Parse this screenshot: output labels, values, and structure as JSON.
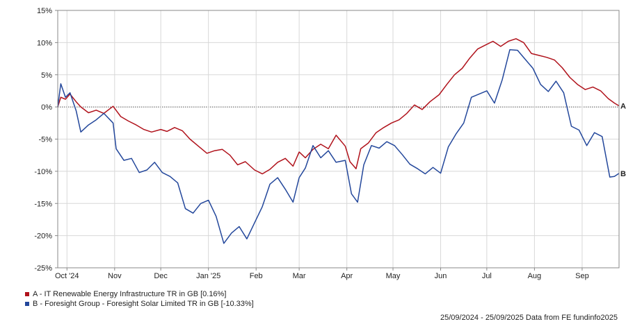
{
  "chart_data": {
    "type": "line",
    "y_unit": "%",
    "ylim": [
      -25,
      15
    ],
    "y_ticks": [
      "15%",
      "10%",
      "5%",
      "0%",
      "-5%",
      "-10%",
      "-15%",
      "-20%",
      "-25%"
    ],
    "y_tick_values": [
      15,
      10,
      5,
      0,
      -5,
      -10,
      -15,
      -20,
      -25
    ],
    "x_start": "2024-09-25",
    "x_end": "2025-09-25",
    "x_ticks": [
      {
        "label": "Oct '24",
        "date": "2024-10-01"
      },
      {
        "label": "Nov",
        "date": "2024-11-01"
      },
      {
        "label": "Dec",
        "date": "2024-12-01"
      },
      {
        "label": "Jan '25",
        "date": "2025-01-01"
      },
      {
        "label": "Feb",
        "date": "2025-02-01"
      },
      {
        "label": "Mar",
        "date": "2025-03-01"
      },
      {
        "label": "Apr",
        "date": "2025-04-01"
      },
      {
        "label": "May",
        "date": "2025-05-01"
      },
      {
        "label": "Jun",
        "date": "2025-06-01"
      },
      {
        "label": "Jul",
        "date": "2025-07-01"
      },
      {
        "label": "Aug",
        "date": "2025-08-01"
      },
      {
        "label": "Sep",
        "date": "2025-09-01"
      }
    ],
    "grid": true,
    "zero_line": "dotted",
    "series": [
      {
        "name": "A - IT Renewable Energy Infrastructure TR in GB [0.16%]",
        "end_label": "A",
        "color": "#b0121b",
        "points": [
          [
            "2024-09-25",
            0.0
          ],
          [
            "2024-09-27",
            1.5
          ],
          [
            "2024-09-30",
            1.2
          ],
          [
            "2024-10-03",
            2.0
          ],
          [
            "2024-10-07",
            0.8
          ],
          [
            "2024-10-10",
            0.0
          ],
          [
            "2024-10-15",
            -0.9
          ],
          [
            "2024-10-20",
            -0.5
          ],
          [
            "2024-10-25",
            -1.0
          ],
          [
            "2024-10-31",
            0.1
          ],
          [
            "2024-11-05",
            -1.5
          ],
          [
            "2024-11-10",
            -2.2
          ],
          [
            "2024-11-15",
            -2.8
          ],
          [
            "2024-11-20",
            -3.5
          ],
          [
            "2024-11-25",
            -3.9
          ],
          [
            "2024-12-01",
            -3.5
          ],
          [
            "2024-12-05",
            -3.8
          ],
          [
            "2024-12-10",
            -3.2
          ],
          [
            "2024-12-15",
            -3.7
          ],
          [
            "2024-12-20",
            -5.0
          ],
          [
            "2024-12-25",
            -6.0
          ],
          [
            "2024-12-31",
            -7.2
          ],
          [
            "2025-01-05",
            -6.8
          ],
          [
            "2025-01-10",
            -6.6
          ],
          [
            "2025-01-15",
            -7.5
          ],
          [
            "2025-01-20",
            -9.0
          ],
          [
            "2025-01-25",
            -8.5
          ],
          [
            "2025-01-31",
            -9.8
          ],
          [
            "2025-02-05",
            -10.4
          ],
          [
            "2025-02-10",
            -9.7
          ],
          [
            "2025-02-15",
            -8.6
          ],
          [
            "2025-02-20",
            -8.0
          ],
          [
            "2025-02-25",
            -9.2
          ],
          [
            "2025-03-01",
            -7.0
          ],
          [
            "2025-03-05",
            -7.9
          ],
          [
            "2025-03-10",
            -6.6
          ],
          [
            "2025-03-15",
            -5.8
          ],
          [
            "2025-03-20",
            -6.5
          ],
          [
            "2025-03-25",
            -4.4
          ],
          [
            "2025-03-31",
            -6.1
          ],
          [
            "2025-04-03",
            -8.5
          ],
          [
            "2025-04-07",
            -9.6
          ],
          [
            "2025-04-10",
            -6.5
          ],
          [
            "2025-04-15",
            -5.6
          ],
          [
            "2025-04-20",
            -4.0
          ],
          [
            "2025-04-25",
            -3.2
          ],
          [
            "2025-04-30",
            -2.5
          ],
          [
            "2025-05-05",
            -2.0
          ],
          [
            "2025-05-10",
            -1.0
          ],
          [
            "2025-05-15",
            0.3
          ],
          [
            "2025-05-20",
            -0.4
          ],
          [
            "2025-05-25",
            0.8
          ],
          [
            "2025-05-31",
            1.9
          ],
          [
            "2025-06-05",
            3.5
          ],
          [
            "2025-06-10",
            5.0
          ],
          [
            "2025-06-15",
            6.0
          ],
          [
            "2025-06-20",
            7.6
          ],
          [
            "2025-06-25",
            9.0
          ],
          [
            "2025-06-30",
            9.6
          ],
          [
            "2025-07-05",
            10.2
          ],
          [
            "2025-07-10",
            9.4
          ],
          [
            "2025-07-15",
            10.2
          ],
          [
            "2025-07-20",
            10.6
          ],
          [
            "2025-07-25",
            10.0
          ],
          [
            "2025-07-30",
            8.3
          ],
          [
            "2025-08-04",
            8.0
          ],
          [
            "2025-08-09",
            7.7
          ],
          [
            "2025-08-14",
            7.3
          ],
          [
            "2025-08-19",
            6.1
          ],
          [
            "2025-08-24",
            4.6
          ],
          [
            "2025-08-29",
            3.5
          ],
          [
            "2025-09-03",
            2.7
          ],
          [
            "2025-09-08",
            3.1
          ],
          [
            "2025-09-13",
            2.5
          ],
          [
            "2025-09-18",
            1.3
          ],
          [
            "2025-09-22",
            0.6
          ],
          [
            "2025-09-25",
            0.16
          ]
        ]
      },
      {
        "name": "B - Foresight Group - Foresight Solar Limited TR in GB [-10.33%]",
        "end_label": "B",
        "color": "#23479b",
        "points": [
          [
            "2024-09-25",
            0.0
          ],
          [
            "2024-09-27",
            3.6
          ],
          [
            "2024-09-30",
            1.5
          ],
          [
            "2024-10-03",
            2.2
          ],
          [
            "2024-10-07",
            -0.6
          ],
          [
            "2024-10-10",
            -3.9
          ],
          [
            "2024-10-15",
            -2.8
          ],
          [
            "2024-10-20",
            -2.0
          ],
          [
            "2024-10-25",
            -1.0
          ],
          [
            "2024-10-31",
            -2.5
          ],
          [
            "2024-11-02",
            -6.5
          ],
          [
            "2024-11-07",
            -8.3
          ],
          [
            "2024-11-12",
            -8.0
          ],
          [
            "2024-11-17",
            -10.2
          ],
          [
            "2024-11-22",
            -9.8
          ],
          [
            "2024-11-27",
            -8.6
          ],
          [
            "2024-12-02",
            -10.2
          ],
          [
            "2024-12-07",
            -10.8
          ],
          [
            "2024-12-12",
            -11.8
          ],
          [
            "2024-12-17",
            -15.8
          ],
          [
            "2024-12-22",
            -16.5
          ],
          [
            "2024-12-27",
            -15.0
          ],
          [
            "2025-01-01",
            -14.5
          ],
          [
            "2025-01-06",
            -17.0
          ],
          [
            "2025-01-11",
            -21.2
          ],
          [
            "2025-01-16",
            -19.6
          ],
          [
            "2025-01-21",
            -18.6
          ],
          [
            "2025-01-26",
            -20.5
          ],
          [
            "2025-01-31",
            -18.0
          ],
          [
            "2025-02-05",
            -15.5
          ],
          [
            "2025-02-10",
            -12.0
          ],
          [
            "2025-02-15",
            -11.0
          ],
          [
            "2025-02-20",
            -12.8
          ],
          [
            "2025-02-25",
            -14.8
          ],
          [
            "2025-03-01",
            -11.0
          ],
          [
            "2025-03-05",
            -9.5
          ],
          [
            "2025-03-10",
            -6.0
          ],
          [
            "2025-03-15",
            -7.9
          ],
          [
            "2025-03-20",
            -6.8
          ],
          [
            "2025-03-25",
            -8.6
          ],
          [
            "2025-03-31",
            -8.3
          ],
          [
            "2025-04-04",
            -13.5
          ],
          [
            "2025-04-08",
            -14.8
          ],
          [
            "2025-04-12",
            -9.0
          ],
          [
            "2025-04-17",
            -6.0
          ],
          [
            "2025-04-22",
            -6.4
          ],
          [
            "2025-04-27",
            -5.4
          ],
          [
            "2025-05-02",
            -6.0
          ],
          [
            "2025-05-07",
            -7.4
          ],
          [
            "2025-05-12",
            -8.9
          ],
          [
            "2025-05-17",
            -9.6
          ],
          [
            "2025-05-22",
            -10.4
          ],
          [
            "2025-05-27",
            -9.4
          ],
          [
            "2025-06-01",
            -10.3
          ],
          [
            "2025-06-06",
            -6.2
          ],
          [
            "2025-06-11",
            -4.2
          ],
          [
            "2025-06-16",
            -2.5
          ],
          [
            "2025-06-21",
            1.5
          ],
          [
            "2025-06-26",
            2.0
          ],
          [
            "2025-07-01",
            2.5
          ],
          [
            "2025-07-06",
            0.6
          ],
          [
            "2025-07-11",
            4.2
          ],
          [
            "2025-07-16",
            8.9
          ],
          [
            "2025-07-21",
            8.8
          ],
          [
            "2025-07-26",
            7.4
          ],
          [
            "2025-07-31",
            6.0
          ],
          [
            "2025-08-05",
            3.5
          ],
          [
            "2025-08-10",
            2.4
          ],
          [
            "2025-08-15",
            4.0
          ],
          [
            "2025-08-20",
            2.2
          ],
          [
            "2025-08-25",
            -3.0
          ],
          [
            "2025-08-30",
            -3.6
          ],
          [
            "2025-09-04",
            -6.0
          ],
          [
            "2025-09-09",
            -4.0
          ],
          [
            "2025-09-14",
            -4.6
          ],
          [
            "2025-09-19",
            -10.9
          ],
          [
            "2025-09-22",
            -10.8
          ],
          [
            "2025-09-25",
            -10.33
          ]
        ]
      }
    ],
    "legend_placement": "bottom-left"
  },
  "legend": {
    "a": "A - IT Renewable Energy Infrastructure TR in GB [0.16%]",
    "b": "B - Foresight Group - Foresight Solar Limited TR in GB [-10.33%]"
  },
  "footer": "25/09/2024 - 25/09/2025 Data from FE fundinfo2025",
  "colors": {
    "a": "#b0121b",
    "b": "#23479b",
    "grid": "#d8d8d8",
    "axis": "#888888"
  }
}
